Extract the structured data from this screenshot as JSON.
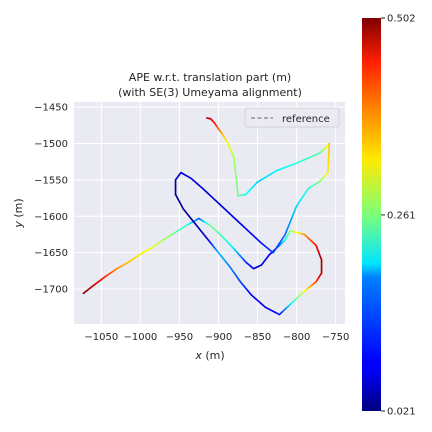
{
  "chart_data": {
    "type": "line",
    "title": "APE w.r.t. translation part (m)",
    "subtitle": "(with SE(3) Umeyama alignment)",
    "xlabel_var": "x",
    "xlabel_unit": " (m)",
    "ylabel_var": "y",
    "ylabel_unit": " (m)",
    "xlim": [
      -1085,
      -738
    ],
    "ylim": [
      -1748,
      -1443
    ],
    "xticks": [
      -1050,
      -1000,
      -950,
      -900,
      -850,
      -800,
      -750
    ],
    "xtick_labels": [
      "−1050",
      "−1000",
      "−950",
      "−900",
      "−850",
      "−800",
      "−750"
    ],
    "yticks": [
      -1450,
      -1500,
      -1550,
      -1600,
      -1650,
      -1700
    ],
    "ytick_labels": [
      "−1450",
      "−1500",
      "−1550",
      "−1600",
      "−1650",
      "−1700"
    ],
    "grid": true,
    "legend": {
      "position": "top-right",
      "entries": [
        "reference"
      ]
    },
    "colorbar": {
      "min": 0.021,
      "max": 0.502,
      "ticks": [
        0.021,
        0.261,
        0.502
      ],
      "tick_labels": [
        "0.021",
        "0.261",
        "0.502"
      ],
      "colormap": "jet"
    },
    "series": [
      {
        "name": "reference",
        "x": [
          -1073,
          -1060,
          -1045,
          -1030,
          -1015,
          -1000,
          -985,
          -970,
          -955,
          -940,
          -925,
          -910,
          -895,
          -880,
          -865,
          -855,
          -845,
          -835,
          -825,
          -815,
          -808,
          -790,
          -775,
          -768,
          -768,
          -775,
          -790,
          -805,
          -822,
          -840,
          -858,
          -872,
          -885,
          -900,
          -915,
          -930,
          -945,
          -955,
          -955,
          -948,
          -935,
          -920,
          -905,
          -890,
          -875,
          -860,
          -845,
          -830,
          -815,
          -800,
          -785,
          -770,
          -760,
          -758,
          -762,
          -767,
          -772,
          -800,
          -825,
          -850,
          -865,
          -875,
          -880,
          -888,
          -895,
          -900,
          -905,
          -910,
          -915
        ],
        "y": [
          -1706,
          -1695,
          -1683,
          -1672,
          -1663,
          -1652,
          -1643,
          -1632,
          -1622,
          -1612,
          -1603,
          -1613,
          -1628,
          -1645,
          -1663,
          -1672,
          -1667,
          -1653,
          -1643,
          -1633,
          -1620,
          -1625,
          -1640,
          -1660,
          -1678,
          -1690,
          -1703,
          -1718,
          -1735,
          -1725,
          -1708,
          -1690,
          -1670,
          -1650,
          -1630,
          -1610,
          -1590,
          -1570,
          -1550,
          -1540,
          -1548,
          -1562,
          -1577,
          -1592,
          -1607,
          -1622,
          -1637,
          -1650,
          -1626,
          -1586,
          -1562,
          -1552,
          -1540,
          -1500,
          -1505,
          -1510,
          -1514,
          -1527,
          -1537,
          -1553,
          -1570,
          -1572,
          -1520,
          -1500,
          -1487,
          -1480,
          -1472,
          -1466,
          -1465
        ],
        "ape": [
          0.5,
          0.47,
          0.43,
          0.38,
          0.35,
          0.33,
          0.31,
          0.28,
          0.25,
          0.22,
          0.12,
          0.26,
          0.23,
          0.19,
          0.1,
          0.07,
          0.06,
          0.07,
          0.1,
          0.2,
          0.26,
          0.37,
          0.44,
          0.49,
          0.48,
          0.42,
          0.32,
          0.22,
          0.09,
          0.07,
          0.08,
          0.11,
          0.14,
          0.17,
          0.06,
          0.04,
          0.03,
          0.03,
          0.05,
          0.06,
          0.07,
          0.06,
          0.06,
          0.06,
          0.07,
          0.08,
          0.09,
          0.11,
          0.13,
          0.18,
          0.22,
          0.26,
          0.33,
          0.35,
          0.31,
          0.27,
          0.24,
          0.22,
          0.2,
          0.18,
          0.21,
          0.25,
          0.28,
          0.32,
          0.35,
          0.39,
          0.43,
          0.46,
          0.48
        ]
      }
    ]
  }
}
